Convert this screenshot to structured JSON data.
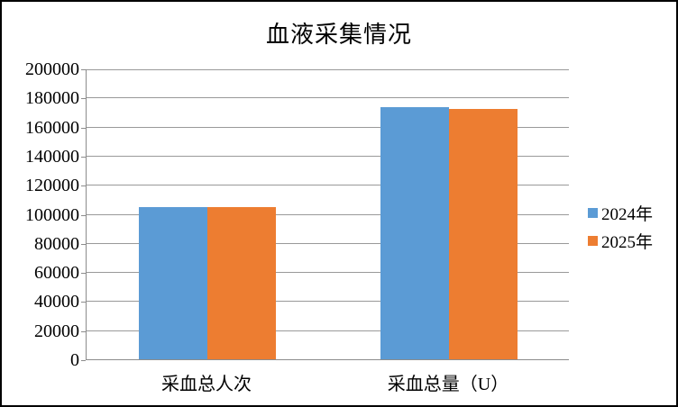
{
  "window": {
    "background": "#ffffff",
    "frame_border_color": "#000000"
  },
  "chart_data": {
    "type": "bar",
    "title": "血液采集情况",
    "categories": [
      "采血总人次",
      "采血总量（U）"
    ],
    "series": [
      {
        "name": "2024年",
        "color": "#5B9BD5",
        "values": [
          104700,
          173400
        ]
      },
      {
        "name": "2025年",
        "color": "#ED7D31",
        "values": [
          104400,
          172200
        ]
      }
    ],
    "ylim": [
      0,
      200000
    ],
    "ytick_step": 20000,
    "ytick_labels": [
      "0",
      "20000",
      "40000",
      "60000",
      "80000",
      "100000",
      "120000",
      "140000",
      "160000",
      "180000",
      "200000"
    ],
    "xlabel": "",
    "ylabel": "",
    "grid": true,
    "legend_position": "right",
    "axis_color": "#8c8c8c",
    "gridline_color": "#999999",
    "text_color": "#000000"
  }
}
